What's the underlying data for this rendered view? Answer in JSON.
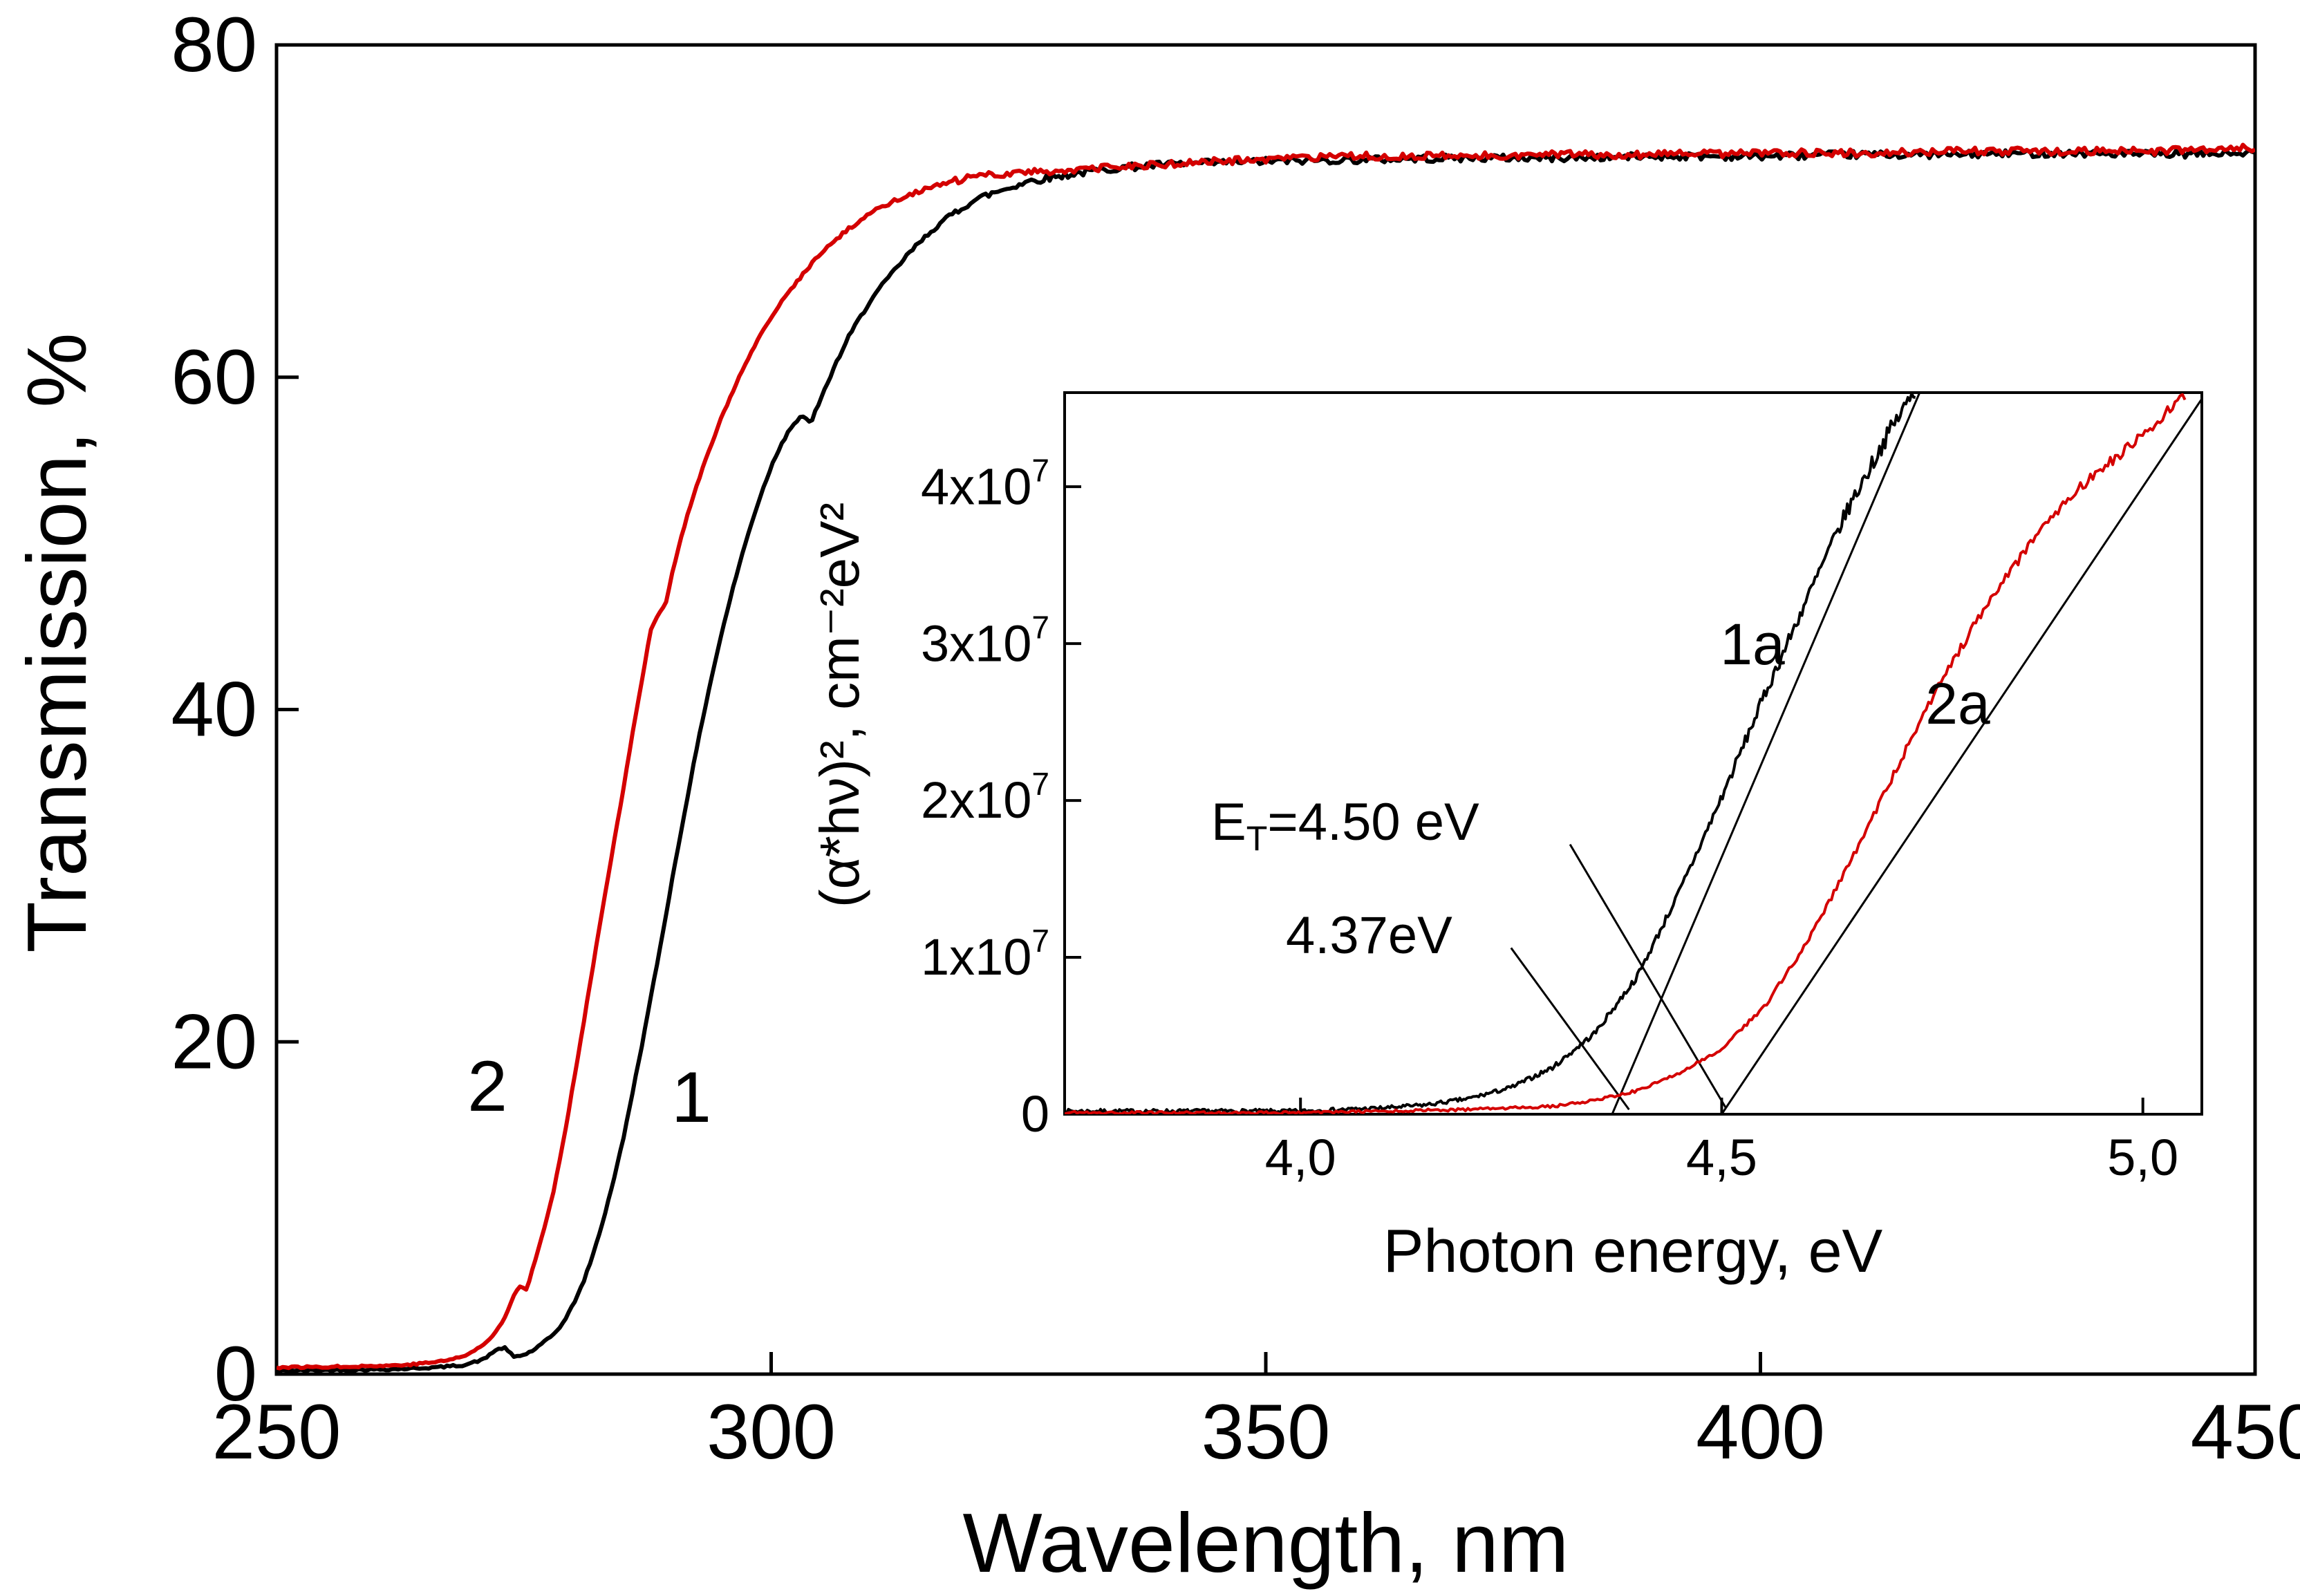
{
  "page": {
    "background": "#ffffff"
  },
  "colors": {
    "axis": "#000000",
    "series1": "#000000",
    "series2": "#d40000",
    "tangent": "#000000"
  },
  "annotations": {
    "et_prefix": "E",
    "et_sub": "T",
    "et_rest": "=4.50 eV",
    "second": "4.37eV"
  },
  "chart_data": [
    {
      "id": "main",
      "type": "line",
      "title": "",
      "xlabel": "Wavelength, nm",
      "ylabel": "Transmission, %",
      "xlim": [
        250,
        450
      ],
      "ylim": [
        0,
        80
      ],
      "xticks": [
        250,
        300,
        350,
        400,
        450
      ],
      "xtick_labels": [
        "250",
        "300",
        "350",
        "400",
        "450"
      ],
      "yticks": [
        0,
        20,
        40,
        60,
        80
      ],
      "ytick_labels": [
        "0",
        "20",
        "40",
        "60",
        "80"
      ],
      "grid": false,
      "series": [
        {
          "name": "1",
          "color": "#000000",
          "points": [
            [
              250,
              0.2
            ],
            [
              256,
              0.25
            ],
            [
              262,
              0.3
            ],
            [
              266,
              0.4
            ],
            [
              269,
              0.55
            ],
            [
              271,
              0.9
            ],
            [
              272,
              1.4
            ],
            [
              273,
              1.6
            ],
            [
              274,
              1.05
            ],
            [
              275,
              1.15
            ],
            [
              276,
              1.45
            ],
            [
              277,
              1.9
            ],
            [
              278,
              2.4
            ],
            [
              279,
              3.1
            ],
            [
              280,
              4.2
            ],
            [
              281,
              5.5
            ],
            [
              282,
              7.2
            ],
            [
              283,
              9.2
            ],
            [
              284,
              11.5
            ],
            [
              285,
              14
            ],
            [
              286,
              17
            ],
            [
              287,
              20
            ],
            [
              288,
              23.2
            ],
            [
              289,
              26.4
            ],
            [
              290,
              29.8
            ],
            [
              291,
              33
            ],
            [
              292,
              36.2
            ],
            [
              293,
              39.2
            ],
            [
              294,
              42
            ],
            [
              295,
              44.6
            ],
            [
              296,
              47
            ],
            [
              297,
              49.2
            ],
            [
              298,
              51.2
            ],
            [
              299,
              53
            ],
            [
              300,
              54.6
            ],
            [
              301,
              56
            ],
            [
              302,
              57
            ],
            [
              303,
              57.6
            ],
            [
              304,
              57.3
            ],
            [
              305,
              58.6
            ],
            [
              306,
              60.1
            ],
            [
              307,
              61.4
            ],
            [
              308,
              62.6
            ],
            [
              309,
              63.6
            ],
            [
              310,
              64.6
            ],
            [
              312,
              66.1
            ],
            [
              314,
              67.5
            ],
            [
              316,
              68.7
            ],
            [
              318,
              69.7
            ],
            [
              320,
              70.5
            ],
            [
              322,
              71
            ],
            [
              324,
              71.4
            ],
            [
              326,
              71.8
            ],
            [
              328,
              72
            ],
            [
              330,
              72.2
            ],
            [
              335,
              72.6
            ],
            [
              340,
              72.8
            ],
            [
              345,
              72.9
            ],
            [
              350,
              73
            ],
            [
              360,
              73.1
            ],
            [
              370,
              73.2
            ],
            [
              380,
              73.2
            ],
            [
              390,
              73.3
            ],
            [
              400,
              73.3
            ],
            [
              410,
              73.4
            ],
            [
              420,
              73.4
            ],
            [
              430,
              73.5
            ],
            [
              440,
              73.4
            ],
            [
              450,
              73.5
            ]
          ]
        },
        {
          "name": "2",
          "color": "#d40000",
          "points": [
            [
              250,
              0.4
            ],
            [
              256,
              0.45
            ],
            [
              261,
              0.5
            ],
            [
              264,
              0.6
            ],
            [
              267,
              0.8
            ],
            [
              269,
              1.1
            ],
            [
              270,
              1.4
            ],
            [
              271,
              1.8
            ],
            [
              272,
              2.4
            ],
            [
              273,
              3.3
            ],
            [
              274,
              4.8
            ],
            [
              274.6,
              5.3
            ],
            [
              275.3,
              5.1
            ],
            [
              276,
              6.6
            ],
            [
              277,
              8.6
            ],
            [
              278,
              11
            ],
            [
              279,
              14
            ],
            [
              280,
              17.5
            ],
            [
              281,
              21
            ],
            [
              282,
              24.6
            ],
            [
              283,
              28.2
            ],
            [
              284,
              31.6
            ],
            [
              285,
              35
            ],
            [
              286,
              38.6
            ],
            [
              287,
              42
            ],
            [
              287.8,
              44.8
            ],
            [
              288.6,
              45.7
            ],
            [
              289.3,
              46.3
            ],
            [
              290,
              48.2
            ],
            [
              291,
              50.6
            ],
            [
              292,
              52.6
            ],
            [
              293,
              54.4
            ],
            [
              294,
              56
            ],
            [
              295,
              57.6
            ],
            [
              296,
              59
            ],
            [
              297,
              60.3
            ],
            [
              298,
              61.5
            ],
            [
              299,
              62.6
            ],
            [
              300,
              63.6
            ],
            [
              302,
              65.3
            ],
            [
              304,
              66.8
            ],
            [
              306,
              68
            ],
            [
              308,
              69
            ],
            [
              310,
              69.9
            ],
            [
              312,
              70.5
            ],
            [
              314,
              71
            ],
            [
              316,
              71.4
            ],
            [
              318,
              71.7
            ],
            [
              320,
              72
            ],
            [
              324,
              72.3
            ],
            [
              328,
              72.4
            ],
            [
              332,
              72.5
            ],
            [
              336,
              72.7
            ],
            [
              340,
              72.8
            ],
            [
              345,
              73
            ],
            [
              350,
              73.1
            ],
            [
              360,
              73.3
            ],
            [
              370,
              73.3
            ],
            [
              380,
              73.4
            ],
            [
              390,
              73.4
            ],
            [
              400,
              73.5
            ],
            [
              410,
              73.5
            ],
            [
              420,
              73.6
            ],
            [
              430,
              73.6
            ],
            [
              440,
              73.6
            ],
            [
              450,
              73.8
            ]
          ]
        }
      ]
    },
    {
      "id": "inset",
      "type": "line",
      "title": "",
      "xlabel": "Photon energy, eV",
      "ylabel": "(α*hν)², cm⁻²eV²",
      "xlim": [
        3.72,
        5.07
      ],
      "ylim": [
        0,
        4.6
      ],
      "y_unit_multiplier": 10000000,
      "xticks": [
        4.0,
        4.5,
        5.0
      ],
      "xtick_labels": [
        "4,0",
        "4,5",
        "5,0"
      ],
      "yticks": [
        0,
        1,
        2,
        3,
        4
      ],
      "ytick_labels": [
        "0",
        "1x10^7",
        "2x10^7",
        "3x10^7",
        "4x10^7"
      ],
      "grid": false,
      "series": [
        {
          "name": "1a",
          "color": "#000000",
          "points": [
            [
              3.72,
              0.02
            ],
            [
              3.9,
              0.02
            ],
            [
              4.0,
              0.02
            ],
            [
              4.05,
              0.03
            ],
            [
              4.1,
              0.04
            ],
            [
              4.15,
              0.06
            ],
            [
              4.2,
              0.1
            ],
            [
              4.25,
              0.17
            ],
            [
              4.3,
              0.3
            ],
            [
              4.35,
              0.52
            ],
            [
              4.4,
              0.88
            ],
            [
              4.45,
              1.42
            ],
            [
              4.5,
              2.02
            ],
            [
              4.55,
              2.66
            ],
            [
              4.6,
              3.27
            ],
            [
              4.65,
              3.86
            ],
            [
              4.7,
              4.36
            ],
            [
              4.73,
              4.62
            ]
          ]
        },
        {
          "name": "2a",
          "color": "#d40000",
          "points": [
            [
              3.72,
              0.01
            ],
            [
              4.0,
              0.01
            ],
            [
              4.1,
              0.02
            ],
            [
              4.2,
              0.03
            ],
            [
              4.3,
              0.05
            ],
            [
              4.35,
              0.09
            ],
            [
              4.4,
              0.15
            ],
            [
              4.45,
              0.26
            ],
            [
              4.5,
              0.42
            ],
            [
              4.55,
              0.68
            ],
            [
              4.6,
              1.08
            ],
            [
              4.65,
              1.58
            ],
            [
              4.7,
              2.12
            ],
            [
              4.75,
              2.66
            ],
            [
              4.8,
              3.12
            ],
            [
              4.85,
              3.52
            ],
            [
              4.9,
              3.86
            ],
            [
              4.95,
              4.12
            ],
            [
              5.0,
              4.32
            ],
            [
              5.05,
              4.58
            ]
          ]
        }
      ],
      "tangent_lines": [
        {
          "name": "tangent-1a",
          "intercept_ev": 4.37,
          "points": [
            [
              4.37,
              0
            ],
            [
              4.735,
              4.6
            ]
          ]
        },
        {
          "name": "tangent-2a",
          "intercept_ev": 4.5,
          "points": [
            [
              4.5,
              0
            ],
            [
              5.075,
              4.6
            ]
          ]
        }
      ],
      "leader_lines": [
        {
          "name": "leader-et-450",
          "points": [
            [
              4.32,
              1.72
            ],
            [
              4.505,
              0.04
            ]
          ]
        },
        {
          "name": "leader-437",
          "points": [
            [
              4.25,
              1.06
            ],
            [
              4.39,
              0.03
            ]
          ]
        }
      ]
    }
  ]
}
